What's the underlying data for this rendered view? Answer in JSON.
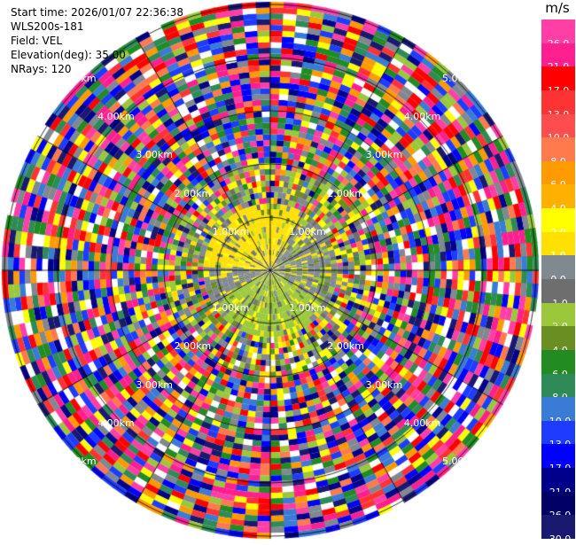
{
  "header": {
    "start_time": "Start time: 2026/01/07 22:36:38",
    "station": "WLS200s-181",
    "field": "Field: VEL",
    "elevation": "Elevation(deg): 35.00",
    "nrays": "NRays: 120"
  },
  "colorbar": {
    "unit": "m/s",
    "levels": [
      {
        "label": "26.0",
        "color": "#ff3fa6"
      },
      {
        "label": "21.0",
        "color": "#ff1f8f"
      },
      {
        "label": "17.0",
        "color": "#ff0000"
      },
      {
        "label": "13.0",
        "color": "#ff3333"
      },
      {
        "label": "10.0",
        "color": "#ff4d4d"
      },
      {
        "label": "8.0",
        "color": "#ff7a4d"
      },
      {
        "label": "6.0",
        "color": "#ff9a00"
      },
      {
        "label": "4.0",
        "color": "#ffb000"
      },
      {
        "label": "2.0",
        "color": "#ffff00"
      },
      {
        "label": "1.0",
        "color": "#ffe000"
      },
      {
        "label": "0.0",
        "color": "#808890"
      },
      {
        "label": "-1.0",
        "color": "#6e6e6e"
      },
      {
        "label": "-2.0",
        "color": "#9ac83a"
      },
      {
        "label": "-4.0",
        "color": "#6b8e23"
      },
      {
        "label": "-6.0",
        "color": "#228b22"
      },
      {
        "label": "-8.0",
        "color": "#2e8b57"
      },
      {
        "label": "-10.0",
        "color": "#3a7bd5"
      },
      {
        "label": "-13.0",
        "color": "#1e3cff"
      },
      {
        "label": "-17.0",
        "color": "#0000ff"
      },
      {
        "label": "-21.0",
        "color": "#00008b"
      },
      {
        "label": "-26.0",
        "color": "#000066"
      },
      {
        "label": "-30.0",
        "color": "#191970"
      }
    ]
  },
  "range_ring_labels": [
    "1.00km",
    "2.00km",
    "3.00km",
    "4.00km",
    "5.00km"
  ],
  "plot": {
    "nrays": 120,
    "inner_colors": [
      "#ffe000",
      "#ffff00",
      "#808890",
      "#6e6e6e",
      "#9ac83a",
      "#6b8e23"
    ],
    "outer_colors": [
      "#ff3fa6",
      "#ff1f8f",
      "#ff0000",
      "#ff3333",
      "#ff7a4d",
      "#ff9a00",
      "#ffff00",
      "#9ac83a",
      "#228b22",
      "#2e8b57",
      "#3a7bd5",
      "#1e3cff",
      "#0000ff",
      "#00008b",
      "#191970",
      "#ffffff",
      "#808890"
    ]
  }
}
